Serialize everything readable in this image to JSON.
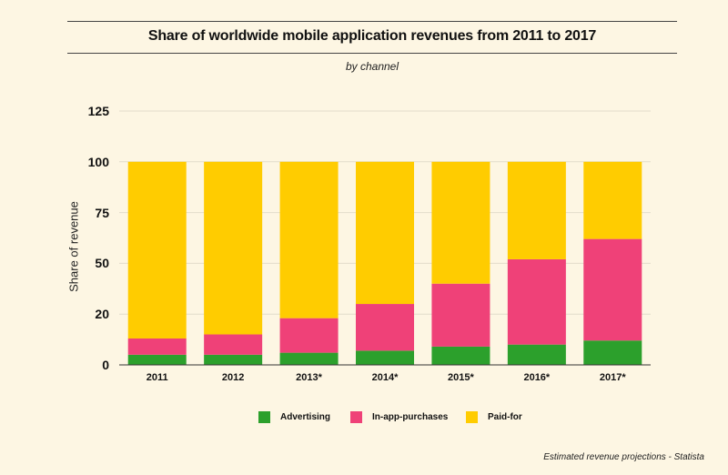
{
  "header": {
    "title": "Share of worldwide mobile application revenues from 2011 to 2017",
    "subtitle": "by channel"
  },
  "footer": {
    "source": "Estimated revenue projections - Statista"
  },
  "colors": {
    "advertising": "#2ca02c",
    "in_app": "#ef4178",
    "paid_for": "#ffcc00",
    "background": "#fdf6e3",
    "grid": "#e2dccb"
  },
  "chart_data": {
    "type": "bar",
    "stacked": true,
    "title": "Share of worldwide mobile application revenues from 2011 to 2017",
    "subtitle": "by channel",
    "xlabel": "",
    "ylabel": "Share of revenue",
    "categories": [
      "2011",
      "2012",
      "2013*",
      "2014*",
      "2015*",
      "2016*",
      "2017*"
    ],
    "y_ticks": [
      "0",
      "20",
      "50",
      "75",
      "100",
      "125"
    ],
    "ylim": [
      0,
      125
    ],
    "grid": true,
    "legend_position": "bottom",
    "series": [
      {
        "name": "Advertising",
        "color": "#2ca02c",
        "values": [
          5,
          5,
          6,
          7,
          9,
          10,
          12
        ]
      },
      {
        "name": "In-app-purchases",
        "color": "#ef4178",
        "values": [
          8,
          10,
          17,
          23,
          31,
          42,
          50
        ]
      },
      {
        "name": "Paid-for",
        "color": "#ffcc00",
        "values": [
          87,
          85,
          77,
          70,
          60,
          48,
          38
        ]
      }
    ]
  }
}
